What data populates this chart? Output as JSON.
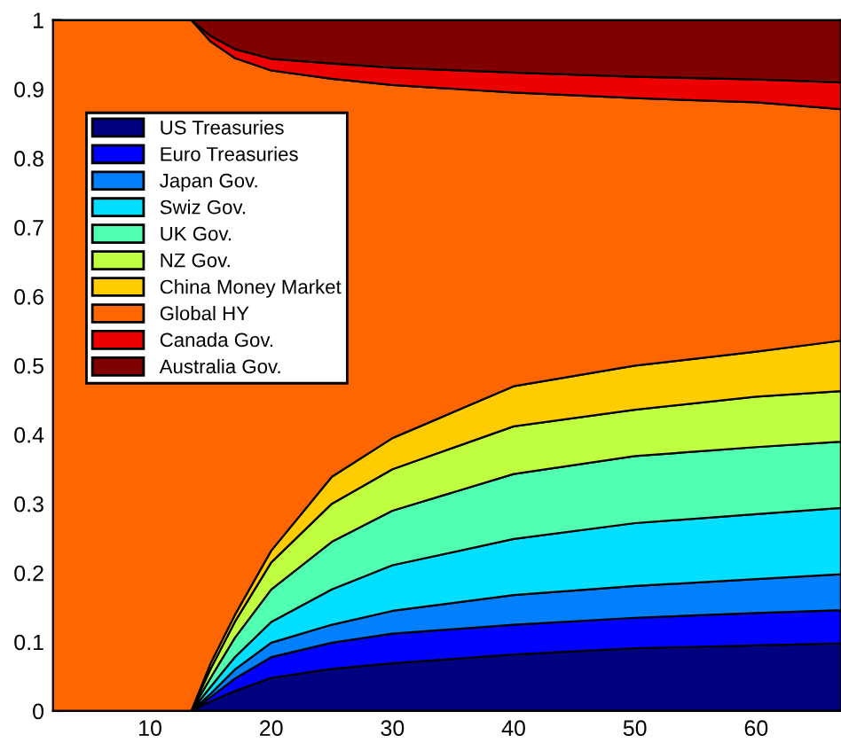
{
  "chart_data": {
    "type": "area",
    "stacked": true,
    "legend": "top left",
    "x": [
      2,
      13.4,
      15,
      17,
      20,
      25,
      30,
      40,
      50,
      60,
      67
    ],
    "xlim": [
      2,
      67
    ],
    "xticks": [
      10,
      20,
      30,
      40,
      50,
      60
    ],
    "ylim": [
      0,
      1
    ],
    "yticks": [
      0,
      0.1,
      0.2,
      0.3,
      0.4,
      0.5,
      0.6,
      0.7,
      0.8,
      0.9,
      1
    ],
    "series": [
      {
        "name": "US Treasuries",
        "color": "#000080",
        "values": [
          0,
          0,
          0.014,
          0.029,
          0.048,
          0.061,
          0.069,
          0.082,
          0.091,
          0.095,
          0.098
        ]
      },
      {
        "name": "Euro Treasuries",
        "color": "#0000ff",
        "values": [
          0,
          0,
          0.006,
          0.018,
          0.03,
          0.038,
          0.043,
          0.043,
          0.044,
          0.047,
          0.048
        ]
      },
      {
        "name": "Japan Gov.",
        "color": "#0080ff",
        "values": [
          0,
          0,
          0.005,
          0.013,
          0.021,
          0.026,
          0.033,
          0.043,
          0.046,
          0.049,
          0.052
        ]
      },
      {
        "name": "Swiz Gov.",
        "color": "#00dfff",
        "values": [
          0,
          0,
          0.01,
          0.018,
          0.03,
          0.051,
          0.066,
          0.081,
          0.091,
          0.094,
          0.096
        ]
      },
      {
        "name": "UK Gov.",
        "color": "#50ffb0",
        "values": [
          0,
          0,
          0.013,
          0.028,
          0.047,
          0.069,
          0.079,
          0.094,
          0.097,
          0.097,
          0.096
        ]
      },
      {
        "name": "NZ Gov.",
        "color": "#c0ff40",
        "values": [
          0,
          0,
          0.013,
          0.023,
          0.039,
          0.055,
          0.06,
          0.069,
          0.067,
          0.073,
          0.073
        ]
      },
      {
        "name": "China Money Market",
        "color": "#ffcc00",
        "values": [
          0,
          0,
          0.008,
          0.01,
          0.017,
          0.039,
          0.045,
          0.058,
          0.064,
          0.065,
          0.073
        ]
      },
      {
        "name": "Global HY",
        "color": "#ff6600",
        "values": [
          1,
          1,
          0.9,
          0.806,
          0.695,
          0.576,
          0.511,
          0.425,
          0.387,
          0.361,
          0.335
        ]
      },
      {
        "name": "Canada Gov.",
        "color": "#ee0000",
        "values": [
          0,
          0,
          0.008,
          0.013,
          0.017,
          0.022,
          0.025,
          0.029,
          0.031,
          0.033,
          0.039
        ]
      },
      {
        "name": "Australia Gov.",
        "color": "#800000",
        "values": [
          0,
          0,
          0.023,
          0.042,
          0.056,
          0.063,
          0.069,
          0.076,
          0.082,
          0.086,
          0.09
        ]
      }
    ]
  }
}
